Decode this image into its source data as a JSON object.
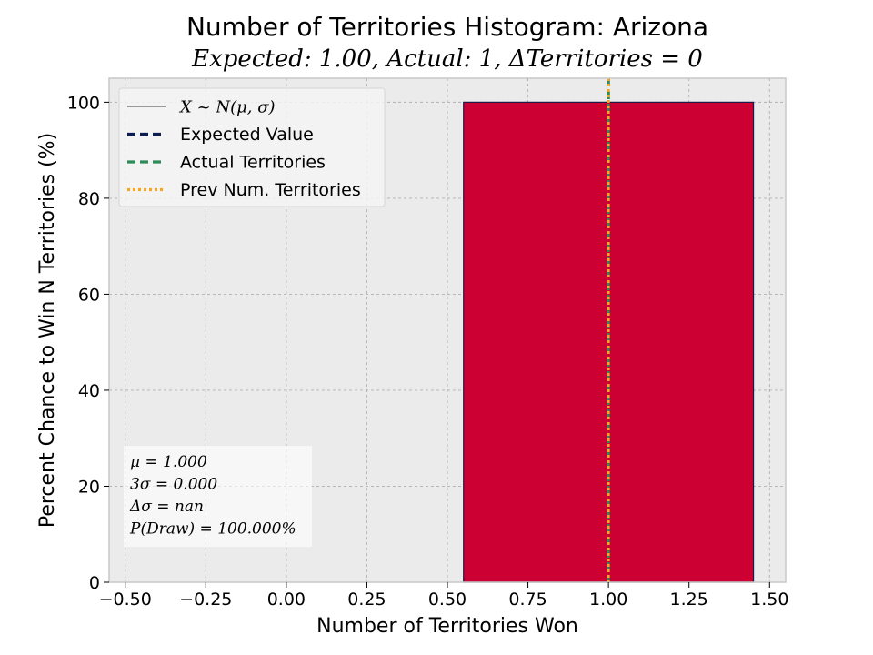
{
  "chart_data": {
    "type": "bar",
    "title": "Number of Territories Histogram: Arizona",
    "subtitle": "Expected: 1.00, Actual: 1, ΔTerritories = 0",
    "xlabel": "Number of Territories Won",
    "ylabel": "Percent Chance to Win N Territories (%)",
    "xlim": [
      -0.55,
      1.55
    ],
    "ylim": [
      0,
      105
    ],
    "xticks": [
      -0.5,
      -0.25,
      0.0,
      0.25,
      0.5,
      0.75,
      1.0,
      1.25,
      1.5
    ],
    "xtick_labels": [
      "−0.50",
      "−0.25",
      "0.00",
      "0.25",
      "0.50",
      "0.75",
      "1.00",
      "1.25",
      "1.50"
    ],
    "yticks": [
      0,
      20,
      40,
      60,
      80,
      100
    ],
    "ytick_labels": [
      "0",
      "20",
      "40",
      "60",
      "80",
      "100"
    ],
    "grid": true,
    "bars": [
      {
        "x": 1.0,
        "width": 0.9,
        "value": 100
      }
    ],
    "vlines": [
      {
        "name": "expected-value",
        "x": 1.0,
        "color": "#0b1e4f",
        "style": "dashed"
      },
      {
        "name": "actual-territories",
        "x": 1.0,
        "color": "#2e8b57",
        "style": "dashed"
      },
      {
        "name": "prev-num-territories",
        "x": 1.0,
        "color": "#f5a623",
        "style": "dotted"
      }
    ],
    "legend_position": "top-left",
    "legend": [
      {
        "label": "X ~ N(μ, σ)",
        "style": "solid-thin",
        "color": "#000000",
        "math": true
      },
      {
        "label": "Expected Value",
        "style": "dashed",
        "color": "#0b1e4f"
      },
      {
        "label": "Actual Territories",
        "style": "dashed",
        "color": "#2e8b57"
      },
      {
        "label": "Prev Num. Territories",
        "style": "dotted",
        "color": "#f5a623"
      }
    ],
    "stats_box_position": "bottom-left",
    "stats": [
      "μ = 1.000",
      "3σ = 0.000",
      "Δσ = nan",
      "P(Draw) = 100.000%"
    ]
  },
  "colors": {
    "bar_fill": "#cc0033",
    "bar_edge": "#1a1a4a",
    "plot_bg": "#ebebeb",
    "grid": "#b0b0b0"
  }
}
